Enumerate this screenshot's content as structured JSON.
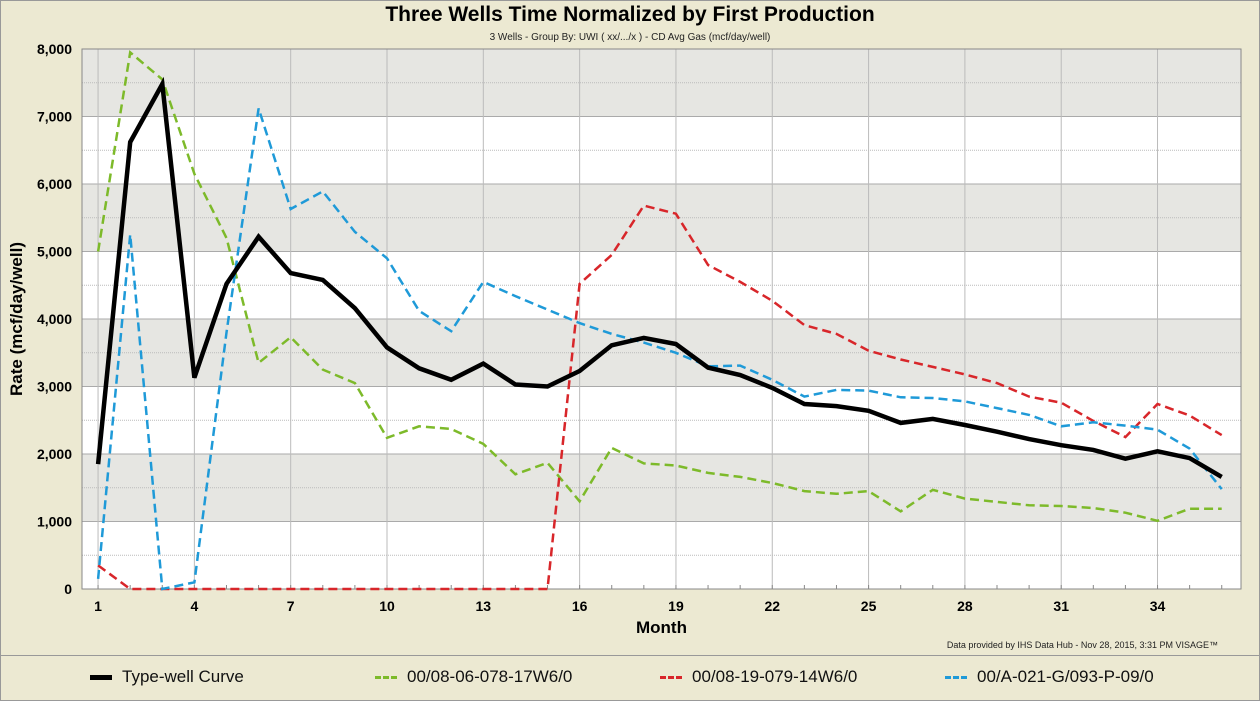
{
  "chart_data": {
    "type": "line",
    "title": "Three Wells Time Normalized by First Production",
    "subtitle": "3 Wells - Group By: UWI ( xx/.../x ) - CD Avg Gas (mcf/day/well)",
    "xlabel": "Month",
    "ylabel": "Rate (mcf/day/well)",
    "xlim": [
      0.5,
      36.6
    ],
    "ylim": [
      0,
      8000
    ],
    "xticks": [
      1,
      4,
      7,
      10,
      13,
      16,
      19,
      22,
      25,
      28,
      31,
      34
    ],
    "yticks": [
      0,
      1000,
      2000,
      3000,
      4000,
      5000,
      6000,
      7000,
      8000
    ],
    "ytick_labels": [
      "0",
      "1,000",
      "2,000",
      "3,000",
      "4,000",
      "5,000",
      "6,000",
      "7,000",
      "8,000"
    ],
    "grid": true,
    "legend_position": "bottom",
    "x": [
      1,
      2,
      3,
      4,
      5,
      6,
      7,
      8,
      9,
      10,
      11,
      12,
      13,
      14,
      15,
      16,
      17,
      18,
      19,
      20,
      21,
      22,
      23,
      24,
      25,
      26,
      27,
      28,
      29,
      30,
      31,
      32,
      33,
      34,
      35,
      36
    ],
    "series": [
      {
        "name": "Type-well Curve",
        "color": "#000000",
        "style": "solid",
        "values": [
          1850,
          6620,
          7480,
          3130,
          4520,
          5220,
          4680,
          4580,
          4160,
          3580,
          3270,
          3100,
          3340,
          3030,
          3000,
          3230,
          3610,
          3720,
          3630,
          3280,
          3170,
          2980,
          2740,
          2710,
          2640,
          2460,
          2520,
          2430,
          2330,
          2220,
          2130,
          2060,
          1930,
          2040,
          1940,
          1660
        ]
      },
      {
        "name": "00/08-06-078-17W6/0",
        "color": "#7dba2a",
        "style": "dashed",
        "values": [
          5000,
          7950,
          7550,
          6150,
          5200,
          3350,
          3730,
          3250,
          3050,
          2240,
          2410,
          2370,
          2150,
          1700,
          1870,
          1300,
          2090,
          1860,
          1830,
          1720,
          1660,
          1570,
          1450,
          1410,
          1450,
          1150,
          1470,
          1340,
          1290,
          1240,
          1230,
          1200,
          1130,
          1010,
          1190,
          1190
        ]
      },
      {
        "name": "00/08-19-079-14W6/0",
        "color": "#d8262a",
        "style": "dashed",
        "values": [
          350,
          0,
          0,
          0,
          0,
          0,
          0,
          0,
          0,
          0,
          0,
          0,
          0,
          0,
          0,
          4520,
          4950,
          5680,
          5560,
          4800,
          4550,
          4270,
          3910,
          3780,
          3530,
          3400,
          3290,
          3180,
          3050,
          2850,
          2760,
          2490,
          2250,
          2740,
          2570,
          2280
        ]
      },
      {
        "name": "00/A-021-G/093-P-09/0",
        "color": "#1f9ad8",
        "style": "dashed",
        "values": [
          150,
          5250,
          0,
          100,
          3800,
          7120,
          5630,
          5890,
          5290,
          4900,
          4120,
          3820,
          4550,
          4340,
          4140,
          3940,
          3780,
          3650,
          3500,
          3300,
          3310,
          3100,
          2850,
          2950,
          2940,
          2840,
          2830,
          2780,
          2680,
          2580,
          2410,
          2470,
          2420,
          2360,
          2080,
          1480
        ]
      }
    ]
  },
  "footer": "Data provided by IHS Data Hub - Nov 28, 2015, 3:31 PM  VISAGE™"
}
